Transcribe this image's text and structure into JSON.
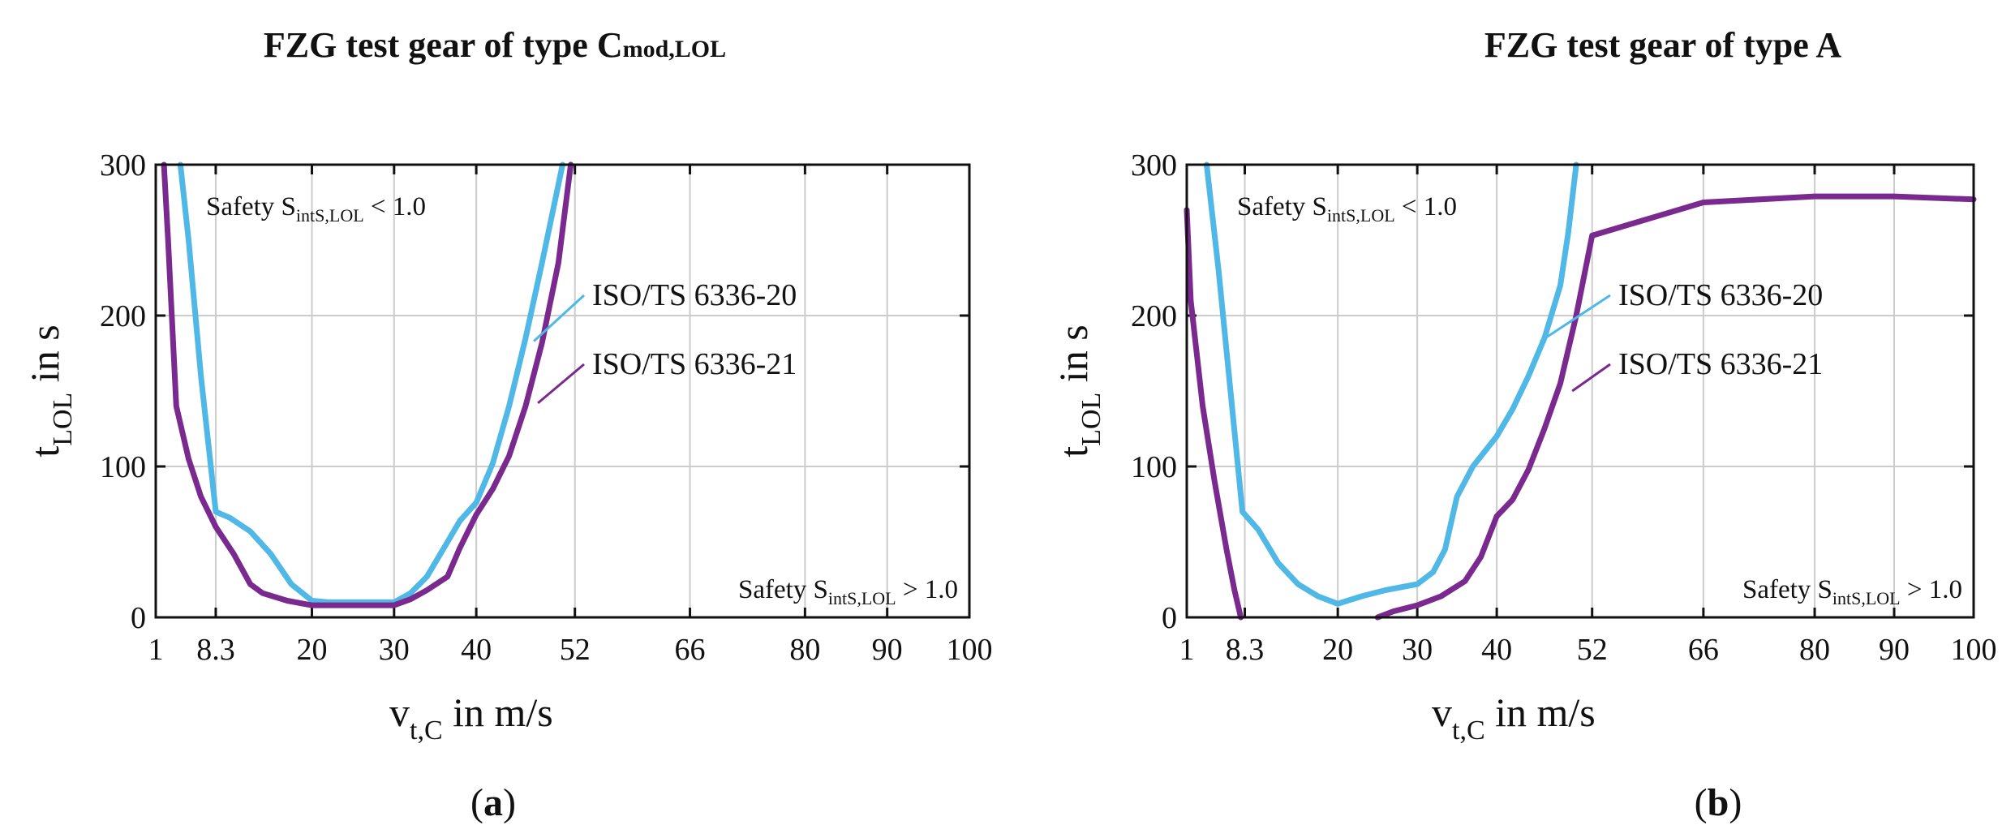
{
  "chart_data": [
    {
      "type": "line",
      "panel_label": "a",
      "title": "FZG test gear of type C",
      "title_subscript": "mod,LOL",
      "xlabel": "v",
      "xlabel_subscript": "t,C",
      "xlabel_unit": " in m/s",
      "ylabel": "t",
      "ylabel_subscript": "LOL",
      "ylabel_unit": " in s",
      "x_ticks": [
        1,
        8.3,
        20,
        30,
        40,
        52,
        66,
        80,
        90,
        100
      ],
      "x_tick_labels": [
        "1",
        "8.3",
        "20",
        "30",
        "40",
        "52",
        "66",
        "80",
        "90",
        "100"
      ],
      "y_ticks": [
        0,
        100,
        200,
        300
      ],
      "y_tick_labels": [
        "0",
        "100",
        "200",
        "300"
      ],
      "xlim": [
        1,
        100
      ],
      "ylim": [
        0,
        300
      ],
      "grid": true,
      "annotations": {
        "upper": {
          "prefix": "Safety S",
          "subscript": "intS,LOL",
          "suffix": " < 1.0",
          "position": "top-left"
        },
        "lower": {
          "prefix": "Safety S",
          "subscript": "intS,LOL",
          "suffix": " > 1.0",
          "position": "bottom-right"
        }
      },
      "series": [
        {
          "name": "ISO/TS 6336-20",
          "color": "#4fb8e6",
          "points": [
            [
              4,
              300
            ],
            [
              5,
              250
            ],
            [
              6.5,
              160
            ],
            [
              8.3,
              70
            ],
            [
              10,
              66
            ],
            [
              12.5,
              57
            ],
            [
              15,
              42
            ],
            [
              17.5,
              22
            ],
            [
              20,
              11
            ],
            [
              22,
              10
            ],
            [
              30,
              10
            ],
            [
              32,
              16
            ],
            [
              34,
              27
            ],
            [
              36.5,
              50
            ],
            [
              38,
              64
            ],
            [
              40,
              76
            ],
            [
              42,
              102
            ],
            [
              44,
              140
            ],
            [
              46,
              185
            ],
            [
              48,
              235
            ],
            [
              50.5,
              300
            ]
          ]
        },
        {
          "name": "ISO/TS 6336-21",
          "color": "#7a2a8f",
          "points": [
            [
              2,
              300
            ],
            [
              2.5,
              250
            ],
            [
              3.5,
              140
            ],
            [
              5,
              105
            ],
            [
              6.5,
              80
            ],
            [
              8.3,
              60
            ],
            [
              10.5,
              42
            ],
            [
              12.5,
              22
            ],
            [
              14,
              16
            ],
            [
              17,
              11
            ],
            [
              20,
              8
            ],
            [
              30,
              8
            ],
            [
              32,
              12
            ],
            [
              34,
              18
            ],
            [
              36.5,
              27
            ],
            [
              38,
              46
            ],
            [
              40,
              68
            ],
            [
              42,
              85
            ],
            [
              44,
              107
            ],
            [
              46,
              140
            ],
            [
              48,
              182
            ],
            [
              50,
              235
            ],
            [
              51.5,
              300
            ]
          ]
        }
      ],
      "legend": [
        {
          "label": "ISO/TS 6336-20",
          "color": "#4fb8e6",
          "anchor": [
            47,
            183
          ]
        },
        {
          "label": "ISO/TS 6336-21",
          "color": "#7a2a8f",
          "anchor": [
            47.5,
            142
          ]
        }
      ]
    },
    {
      "type": "line",
      "panel_label": "b",
      "title": "FZG test gear of type A",
      "xlabel": "v",
      "xlabel_subscript": "t,C",
      "xlabel_unit": " in m/s",
      "ylabel": "t",
      "ylabel_subscript": "LOL",
      "ylabel_unit": " in s",
      "x_ticks": [
        1,
        8.3,
        20,
        30,
        40,
        52,
        66,
        80,
        90,
        100
      ],
      "x_tick_labels": [
        "1",
        "8.3",
        "20",
        "30",
        "40",
        "52",
        "66",
        "80",
        "90",
        "100"
      ],
      "y_ticks": [
        0,
        100,
        200,
        300
      ],
      "y_tick_labels": [
        "0",
        "100",
        "200",
        "300"
      ],
      "xlim": [
        1,
        100
      ],
      "ylim": [
        0,
        300
      ],
      "grid": true,
      "annotations": {
        "upper": {
          "prefix": "Safety S",
          "subscript": "intS,LOL",
          "suffix": " < 1.0",
          "position": "top-left"
        },
        "lower": {
          "prefix": "Safety S",
          "subscript": "intS,LOL",
          "suffix": " > 1.0",
          "position": "bottom-right"
        }
      },
      "series": [
        {
          "name": "ISO/TS 6336-20",
          "color": "#4fb8e6",
          "points": [
            [
              3.5,
              300
            ],
            [
              5,
              230
            ],
            [
              6.5,
              150
            ],
            [
              8,
              70
            ],
            [
              10,
              58
            ],
            [
              12.5,
              36
            ],
            [
              15,
              22
            ],
            [
              17.5,
              14
            ],
            [
              20,
              9
            ],
            [
              23,
              14
            ],
            [
              26,
              18
            ],
            [
              30,
              22
            ],
            [
              32,
              30
            ],
            [
              33.5,
              45
            ],
            [
              35,
              80
            ],
            [
              37,
              100
            ],
            [
              40,
              120
            ],
            [
              42,
              138
            ],
            [
              44,
              160
            ],
            [
              46,
              185
            ],
            [
              48,
              220
            ],
            [
              49,
              255
            ],
            [
              50,
              300
            ]
          ]
        },
        {
          "name": "ISO/TS 6336-21",
          "color": "#7a2a8f",
          "points": [
            [
              1,
              270
            ],
            [
              1.5,
              210
            ],
            [
              3,
              140
            ],
            [
              4.5,
              90
            ],
            [
              6,
              45
            ],
            [
              7,
              18
            ],
            [
              7.8,
              0
            ]
          ]
        },
        {
          "name": "ISO/TS 6336-21",
          "color": "#7a2a8f",
          "points": [
            [
              25,
              0
            ],
            [
              27,
              4
            ],
            [
              30,
              8
            ],
            [
              33,
              14
            ],
            [
              36,
              24
            ],
            [
              38,
              40
            ],
            [
              40,
              67
            ],
            [
              42,
              78
            ],
            [
              44,
              98
            ],
            [
              46,
              125
            ],
            [
              48,
              155
            ],
            [
              50,
              200
            ],
            [
              52,
              253
            ],
            [
              66,
              275
            ],
            [
              80,
              279
            ],
            [
              90,
              279
            ],
            [
              100,
              277
            ]
          ]
        }
      ],
      "legend": [
        {
          "label": "ISO/TS 6336-20",
          "color": "#4fb8e6",
          "anchor": [
            45.5,
            183
          ]
        },
        {
          "label": "ISO/TS 6336-21",
          "color": "#7a2a8f",
          "anchor": [
            49.5,
            150
          ]
        }
      ]
    }
  ]
}
